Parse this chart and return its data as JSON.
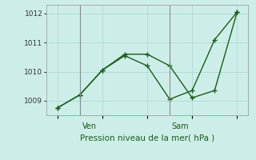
{
  "line1_x": [
    0,
    1,
    2,
    3,
    4,
    5,
    6,
    7,
    8
  ],
  "line1_y": [
    1008.75,
    1009.2,
    1010.05,
    1010.6,
    1010.6,
    1010.2,
    1009.1,
    1009.35,
    1012.05
  ],
  "line2_x": [
    0,
    1,
    2,
    3,
    4,
    5,
    6,
    7,
    8
  ],
  "line2_y": [
    1008.75,
    1009.2,
    1010.05,
    1010.55,
    1010.2,
    1009.05,
    1009.35,
    1011.1,
    1012.05
  ],
  "yticks": [
    1009,
    1010,
    1011,
    1012
  ],
  "ylim": [
    1008.5,
    1012.3
  ],
  "xlim": [
    -0.5,
    8.5
  ],
  "ven_x": 1.0,
  "sam_x": 5.0,
  "xlabel": "Pression niveau de la mer( hPa )",
  "line_color": "#1a5c1a",
  "bg_color": "#cdeee8",
  "grid_color": "#b0ddd4",
  "markersize": 3,
  "linewidth": 1.0,
  "tick_label_size": 6.5,
  "xlabel_size": 7.5
}
